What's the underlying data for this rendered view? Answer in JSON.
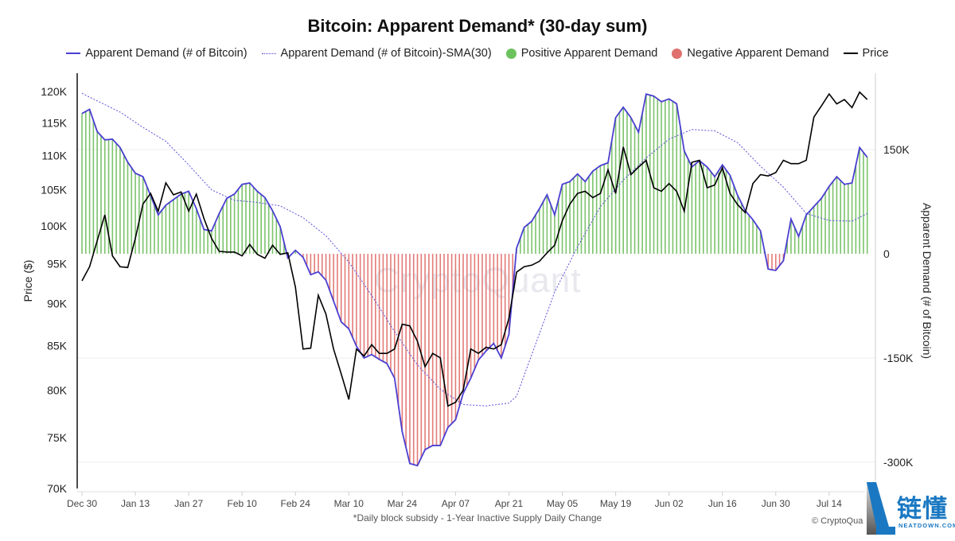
{
  "title": "Bitcoin: Apparent Demand* (30-day sum)",
  "legend": [
    {
      "label": "Apparent Demand (# of Bitcoin)",
      "style": "line",
      "color": "#4b3fd0"
    },
    {
      "label": "Apparent Demand (# of Bitcoin)-SMA(30)",
      "style": "dotted",
      "color": "#4b3fd0"
    },
    {
      "label": "Positive Apparent Demand",
      "style": "circle",
      "color": "#6cc35e"
    },
    {
      "label": "Negative Apparent Demand",
      "style": "circle",
      "color": "#e0706d"
    },
    {
      "label": "Price",
      "style": "line",
      "color": "#000000"
    }
  ],
  "footnote": "*Daily block subsidy - 1-Year Inactive Supply Daily Change",
  "credit": "© CryptoQua",
  "watermark": "CryptoQuant",
  "logo": {
    "cn": "链懂",
    "en": "NEATDOWN.COM"
  },
  "chart_data": {
    "type": "bar+line",
    "title": "Bitcoin: Apparent Demand* (30-day sum)",
    "x_ticks": [
      "Dec 30",
      "Jan 13",
      "Jan 27",
      "Feb 10",
      "Feb 24",
      "Mar 10",
      "Mar 24",
      "Apr 07",
      "Apr 21",
      "May 05",
      "May 19",
      "Jun 02",
      "Jun 16",
      "Jun 30",
      "Jul 14"
    ],
    "x_tick_dates": [
      "2024-12-30",
      "2025-01-13",
      "2025-01-27",
      "2025-02-10",
      "2025-02-24",
      "2025-03-10",
      "2025-03-24",
      "2025-04-07",
      "2025-04-21",
      "2025-05-05",
      "2025-05-19",
      "2025-06-02",
      "2025-06-16",
      "2025-06-30",
      "2025-07-14"
    ],
    "left_axis": {
      "label": "Price ($)",
      "scale": "log",
      "range": [
        70000,
        122000
      ],
      "ticks": [
        120000,
        115000,
        110000,
        105000,
        100000,
        95000,
        90000,
        85000,
        80000,
        75000,
        70000
      ],
      "tick_labels": [
        "120K",
        "115K",
        "110K",
        "105K",
        "100K",
        "95K",
        "90K",
        "85K",
        "80K",
        "75K",
        "70K"
      ]
    },
    "right_axis": {
      "label": "Apparent Demand (# of Bitcoin)",
      "scale": "linear",
      "range": [
        -345000,
        260000
      ],
      "ticks": [
        150000,
        0,
        -150000,
        -300000
      ],
      "tick_labels": [
        "150K",
        "0",
        "-150K",
        "-300K"
      ]
    },
    "grid": true,
    "legend_position": "top",
    "x": [
      "2024-12-30",
      "2025-01-01",
      "2025-01-03",
      "2025-01-05",
      "2025-01-07",
      "2025-01-09",
      "2025-01-11",
      "2025-01-13",
      "2025-01-15",
      "2025-01-17",
      "2025-01-19",
      "2025-01-21",
      "2025-01-23",
      "2025-01-25",
      "2025-01-27",
      "2025-01-29",
      "2025-01-31",
      "2025-02-02",
      "2025-02-04",
      "2025-02-06",
      "2025-02-08",
      "2025-02-10",
      "2025-02-12",
      "2025-02-14",
      "2025-02-16",
      "2025-02-18",
      "2025-02-20",
      "2025-02-22",
      "2025-02-24",
      "2025-02-26",
      "2025-02-28",
      "2025-03-02",
      "2025-03-04",
      "2025-03-06",
      "2025-03-08",
      "2025-03-10",
      "2025-03-12",
      "2025-03-14",
      "2025-03-16",
      "2025-03-18",
      "2025-03-20",
      "2025-03-22",
      "2025-03-24",
      "2025-03-26",
      "2025-03-28",
      "2025-03-30",
      "2025-04-01",
      "2025-04-03",
      "2025-04-05",
      "2025-04-07",
      "2025-04-09",
      "2025-04-11",
      "2025-04-13",
      "2025-04-15",
      "2025-04-17",
      "2025-04-19",
      "2025-04-21",
      "2025-04-23",
      "2025-04-25",
      "2025-04-27",
      "2025-04-29",
      "2025-05-01",
      "2025-05-03",
      "2025-05-05",
      "2025-05-07",
      "2025-05-09",
      "2025-05-11",
      "2025-05-13",
      "2025-05-15",
      "2025-05-17",
      "2025-05-19",
      "2025-05-21",
      "2025-05-23",
      "2025-05-25",
      "2025-05-27",
      "2025-05-29",
      "2025-05-31",
      "2025-06-02",
      "2025-06-04",
      "2025-06-06",
      "2025-06-08",
      "2025-06-10",
      "2025-06-12",
      "2025-06-14",
      "2025-06-16",
      "2025-06-18",
      "2025-06-20",
      "2025-06-22",
      "2025-06-24",
      "2025-06-26",
      "2025-06-28",
      "2025-06-30",
      "2025-07-02",
      "2025-07-04",
      "2025-07-06",
      "2025-07-08",
      "2025-07-10",
      "2025-07-12",
      "2025-07-14",
      "2025-07-16",
      "2025-07-18",
      "2025-07-20",
      "2025-07-22",
      "2025-07-24"
    ],
    "series": [
      {
        "name": "Apparent Demand (# of Bitcoin)",
        "axis": "right",
        "values": [
          202000,
          208000,
          176000,
          164000,
          165000,
          153000,
          132000,
          116000,
          111000,
          84000,
          56000,
          70000,
          78000,
          86000,
          90000,
          65000,
          35000,
          33000,
          58000,
          80000,
          86000,
          100000,
          102000,
          90000,
          81000,
          62000,
          39000,
          -6000,
          5000,
          -5000,
          -30000,
          -26000,
          -38000,
          -68000,
          -98000,
          -108000,
          -133000,
          -150000,
          -145000,
          -152000,
          -158000,
          -179000,
          -256000,
          -302000,
          -305000,
          -282000,
          -276000,
          -276000,
          -250000,
          -239000,
          -201000,
          -179000,
          -153000,
          -140000,
          -129000,
          -150000,
          -116000,
          8000,
          38000,
          47000,
          65000,
          85000,
          56000,
          100000,
          104000,
          115000,
          104000,
          119000,
          127000,
          131000,
          196000,
          211000,
          196000,
          175000,
          230000,
          227000,
          219000,
          223000,
          216000,
          148000,
          125000,
          134000,
          125000,
          111000,
          128000,
          113000,
          84000,
          62000,
          49000,
          33000,
          -22000,
          -24000,
          -10000,
          50000,
          25000,
          56000,
          68000,
          80000,
          97000,
          111000,
          100000,
          102000,
          153000,
          139000
        ]
      },
      {
        "name": "Price",
        "axis": "left",
        "values": [
          92800,
          94600,
          98000,
          101500,
          96000,
          94600,
          94500,
          98300,
          103000,
          104500,
          102000,
          106000,
          104300,
          104700,
          102000,
          104400,
          101000,
          98300,
          96600,
          96500,
          96500,
          96000,
          97500,
          96200,
          95700,
          97400,
          96200,
          96400,
          92000,
          84600,
          84700,
          91000,
          88700,
          84600,
          81800,
          79000,
          84600,
          83800,
          85100,
          84100,
          84100,
          84600,
          87500,
          87300,
          85500,
          82600,
          84100,
          83600,
          78300,
          78700,
          80000,
          84600,
          84100,
          84800,
          84600,
          85100,
          88200,
          93900,
          94600,
          94800,
          95300,
          96400,
          97400,
          100700,
          103000,
          104500,
          104800,
          103900,
          104500,
          107900,
          104500,
          111300,
          107200,
          108300,
          109300,
          105300,
          104800,
          105900,
          104800,
          102000,
          109000,
          109300,
          105300,
          105700,
          108200,
          104500,
          102900,
          101800,
          105900,
          107200,
          107000,
          107500,
          109300,
          108800,
          108800,
          109300,
          115900,
          117700,
          119600,
          118000,
          118700,
          117400,
          119900,
          118700
        ]
      }
    ],
    "sma_series": {
      "name": "Apparent Demand (# of Bitcoin)-SMA(30)",
      "axis": "right",
      "x": [
        "2024-12-30",
        "2025-01-09",
        "2025-01-15",
        "2025-01-21",
        "2025-01-27",
        "2025-02-02",
        "2025-02-08",
        "2025-02-14",
        "2025-02-20",
        "2025-02-26",
        "2025-03-04",
        "2025-03-10",
        "2025-03-16",
        "2025-03-22",
        "2025-03-28",
        "2025-04-03",
        "2025-04-09",
        "2025-04-15",
        "2025-04-21",
        "2025-04-23",
        "2025-04-27",
        "2025-05-03",
        "2025-05-09",
        "2025-05-15",
        "2025-05-21",
        "2025-05-27",
        "2025-06-02",
        "2025-06-08",
        "2025-06-14",
        "2025-06-20",
        "2025-06-26",
        "2025-07-02",
        "2025-07-08",
        "2025-07-14",
        "2025-07-20",
        "2025-07-24"
      ],
      "values": [
        231000,
        204000,
        182000,
        162000,
        128000,
        92000,
        77000,
        74000,
        69000,
        52000,
        26000,
        -12000,
        -60000,
        -112000,
        -160000,
        -195000,
        -217000,
        -219000,
        -215000,
        -205000,
        -145000,
        -55000,
        10000,
        68000,
        106000,
        138000,
        165000,
        179000,
        177000,
        160000,
        126000,
        96000,
        58000,
        48000,
        47000,
        58000
      ]
    }
  }
}
